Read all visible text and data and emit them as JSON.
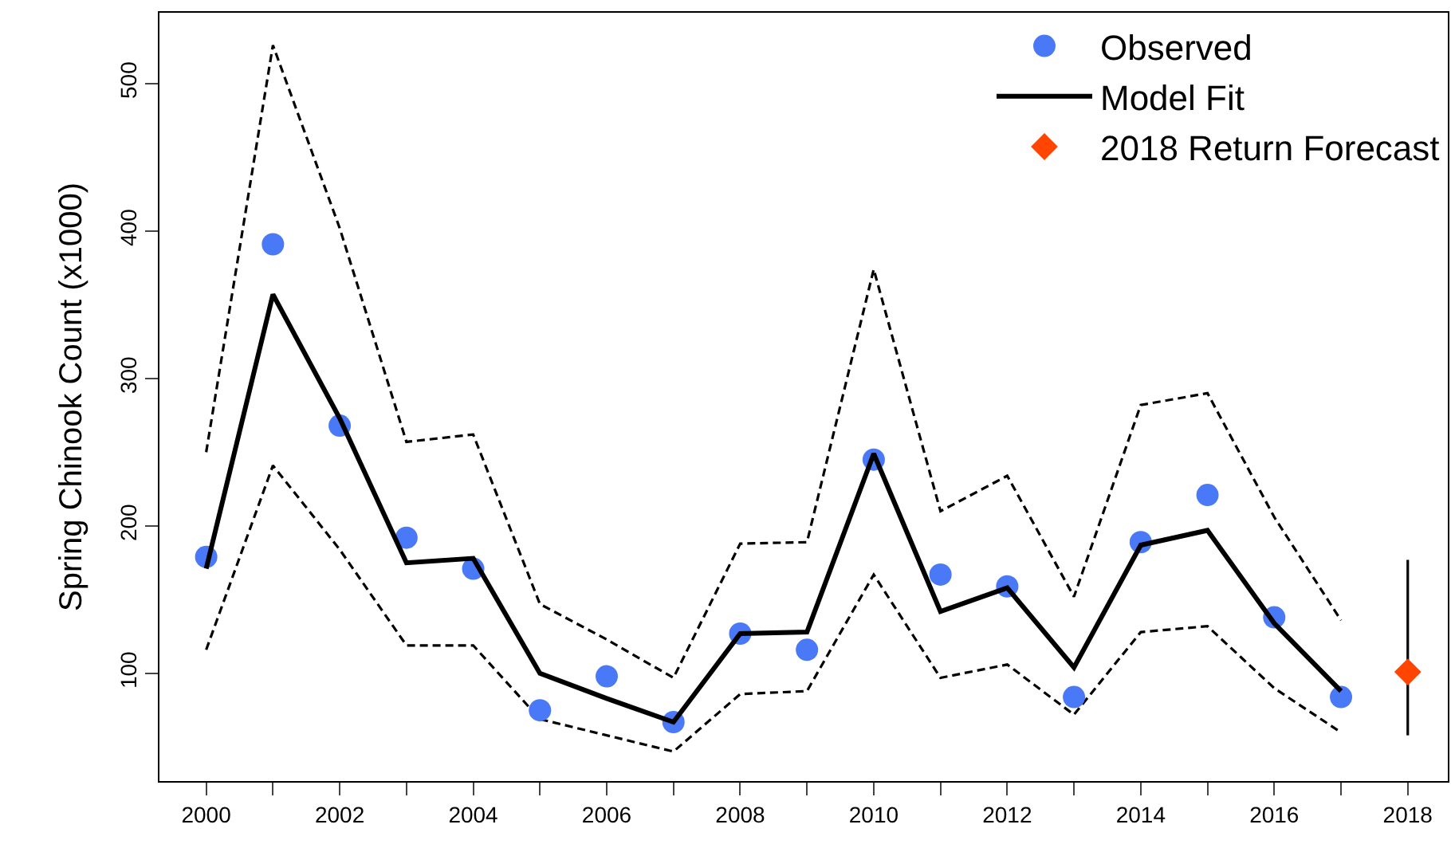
{
  "chart_data": {
    "type": "scatter",
    "ylabel": "Spring Chinook Count (x1000)",
    "x": [
      2000,
      2001,
      2002,
      2003,
      2004,
      2005,
      2006,
      2007,
      2008,
      2009,
      2010,
      2011,
      2012,
      2013,
      2014,
      2015,
      2016,
      2017
    ],
    "series": [
      {
        "type": "line",
        "color": "#000000",
        "line_style": "dashed",
        "values": [
          250,
          526,
          402,
          257,
          262,
          147,
          123,
          97,
          188,
          189,
          374,
          210,
          234,
          152,
          282,
          290,
          206,
          136
        ]
      },
      {
        "type": "line",
        "color": "#000000",
        "line_style": "dashed",
        "values": [
          116,
          241,
          184,
          119,
          119,
          69,
          58,
          47,
          86,
          88,
          167,
          97,
          106,
          72,
          128,
          132,
          90,
          60
        ]
      },
      {
        "name": "Observed",
        "type": "scatter",
        "marker": "circle",
        "color": "#4a79f7",
        "values": [
          179,
          391,
          268,
          192,
          171,
          75,
          98,
          67,
          127,
          116,
          245,
          167,
          159,
          84,
          189,
          221,
          138,
          84
        ]
      },
      {
        "name": "Model Fit",
        "type": "line",
        "color": "#000000",
        "line_style": "solid",
        "values": [
          171,
          357,
          273,
          175,
          178,
          100,
          83,
          67,
          127,
          128,
          249,
          142,
          158,
          104,
          187,
          197,
          134,
          88
        ]
      },
      {
        "name": "2018 Return Forecast",
        "marker": "diamond",
        "color": "#ff4500",
        "x": [
          2018
        ],
        "values": [
          101
        ],
        "errors": [
          [
            58,
            177
          ]
        ]
      }
    ],
    "xlim": [
      1999.3,
      2018.6
    ],
    "ylim": [
      27,
      548
    ],
    "xticks": [
      2000,
      {
        "value": 2001,
        "label": null
      },
      2002,
      {
        "value": 2003,
        "label": null
      },
      2004,
      {
        "value": 2005,
        "label": null
      },
      2006,
      {
        "value": 2007,
        "label": null
      },
      2008,
      {
        "value": 2009,
        "label": null
      },
      2010,
      {
        "value": 2011,
        "label": null
      },
      2012,
      {
        "value": 2013,
        "label": null
      },
      2014,
      {
        "value": 2015,
        "label": null
      },
      2016,
      {
        "value": 2017,
        "label": null
      },
      2018
    ],
    "yticks": [
      100,
      200,
      300,
      400,
      500
    ],
    "legend": "top right"
  }
}
